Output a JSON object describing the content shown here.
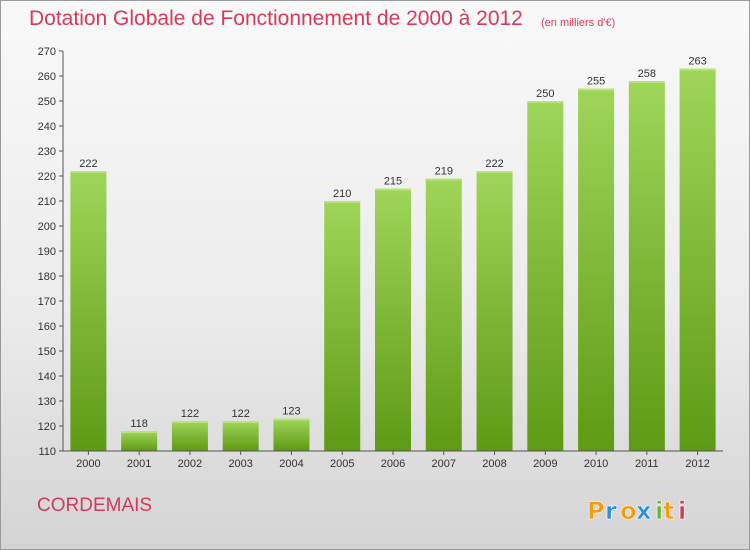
{
  "header": {
    "title": "Dotation Globale de Fonctionnement de 2000 à 2012",
    "subtitle": "(en milliers d'€)"
  },
  "footer": {
    "place": "CORDEMAIS",
    "logo_text": "Proxiti"
  },
  "colors": {
    "title": "#d63a5a",
    "bar_light": "#9fd65a",
    "bar_dark": "#5e9a14",
    "logo": [
      "#f39c12",
      "#2d8fd6",
      "#f39c12",
      "#2d8fd6",
      "#6ab82e",
      "#f39c12",
      "#d63a5a"
    ]
  },
  "chart_data": {
    "type": "bar",
    "categories": [
      "2000",
      "2001",
      "2002",
      "2003",
      "2004",
      "2005",
      "2006",
      "2007",
      "2008",
      "2009",
      "2010",
      "2011",
      "2012"
    ],
    "values": [
      222,
      118,
      122,
      122,
      123,
      210,
      215,
      219,
      222,
      250,
      255,
      258,
      263
    ],
    "ylim": [
      110,
      270
    ],
    "yticks": [
      110,
      120,
      130,
      140,
      150,
      160,
      170,
      180,
      190,
      200,
      210,
      220,
      230,
      240,
      250,
      260,
      270
    ],
    "grid": false,
    "data_labels": true
  }
}
